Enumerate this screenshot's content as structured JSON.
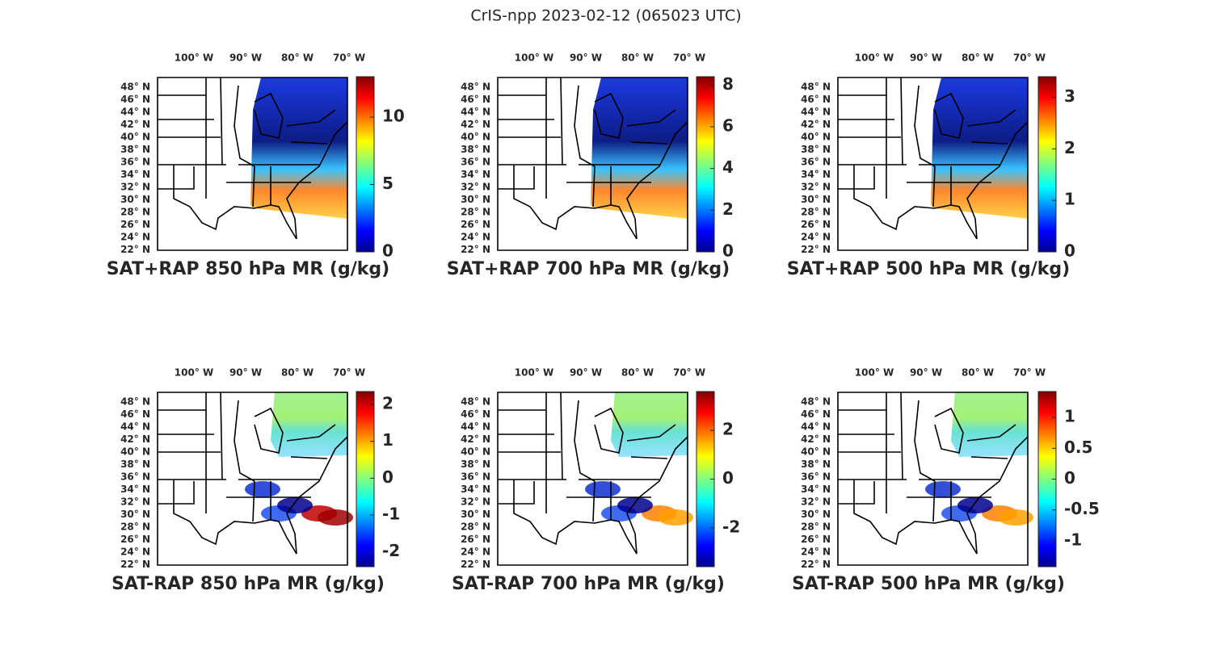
{
  "title": "CrIS-npp 2023-02-12 (065023 UTC)",
  "lon_labels": [
    "100° W",
    "90° W",
    "80° W",
    "70° W"
  ],
  "lat_labels": [
    "48° N",
    "46° N",
    "44° N",
    "42° N",
    "40° N",
    "38° N",
    "36° N",
    "34° N",
    "32° N",
    "30° N",
    "28° N",
    "26° N",
    "24° N",
    "22° N"
  ],
  "panels": [
    {
      "title": "SAT+RAP 850 hPa MR (g/kg)",
      "colorbar": {
        "lim": [
          0,
          13
        ],
        "ticks": [
          0,
          5,
          10
        ]
      }
    },
    {
      "title": "SAT+RAP 700 hPa MR (g/kg)",
      "colorbar": {
        "lim": [
          0,
          8.4
        ],
        "ticks": [
          0,
          2,
          4,
          6,
          8
        ]
      }
    },
    {
      "title": "SAT+RAP 500 hPa MR (g/kg)",
      "colorbar": {
        "lim": [
          0,
          3.4
        ],
        "ticks": [
          0,
          1,
          2,
          3
        ]
      }
    },
    {
      "title": "SAT-RAP 850 hPa MR (g/kg)",
      "colorbar": {
        "lim": [
          -2.4,
          2.35
        ],
        "ticks": [
          -2,
          -1,
          0,
          1,
          2
        ]
      }
    },
    {
      "title": "SAT-RAP 700 hPa MR (g/kg)",
      "colorbar": {
        "lim": [
          -3.6,
          3.6
        ],
        "ticks": [
          -2,
          0,
          2
        ]
      }
    },
    {
      "title": "SAT-RAP 500 hPa MR (g/kg)",
      "colorbar": {
        "lim": [
          -1.42,
          1.42
        ],
        "ticks": [
          -1,
          -0.5,
          0,
          0.5,
          1
        ]
      }
    }
  ]
}
